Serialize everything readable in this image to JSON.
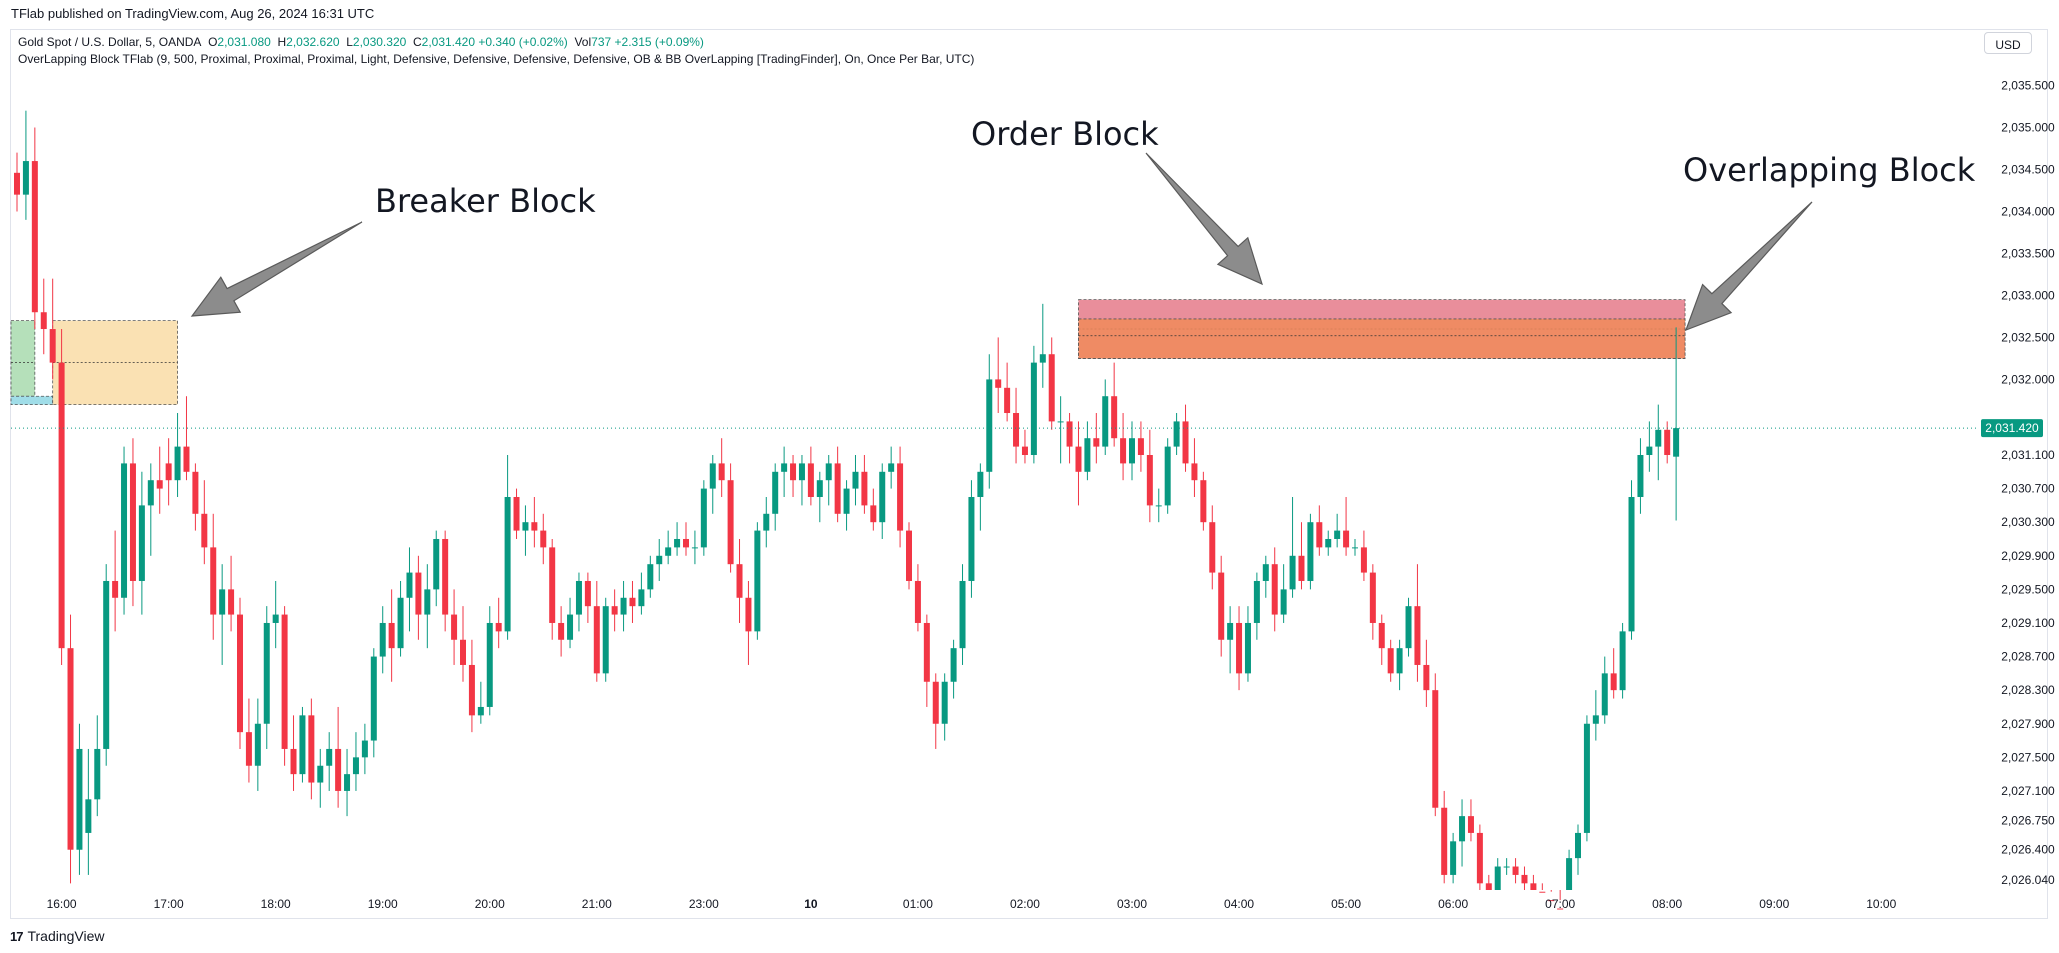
{
  "publisher": {
    "text": "TFlab published on TradingView.com, Aug 26, 2024 16:31 UTC"
  },
  "legend": {
    "symbol": "Gold Spot / U.S. Dollar, 5, OANDA",
    "open_label": "O",
    "open": "2,031.080",
    "high_label": "H",
    "high": "2,032.620",
    "low_label": "L",
    "low": "2,030.320",
    "close_label": "C",
    "close": "2,031.420",
    "change": "+0.340 (+0.02%)",
    "vol_label": "Vol",
    "vol": "737",
    "vol_change": "+2.315 (+0.09%)",
    "indicator": "OverLapping Block TFlab (9, 500, Proximal, Proximal, Proximal, Light, Defensive, Defensive, Defensive, Defensive, OB & BB OverLapping [TradingFinder], On, Once Per Bar, UTC)"
  },
  "currency": {
    "label": "USD"
  },
  "footer": {
    "brand": "TradingView",
    "logo": "17"
  },
  "colors": {
    "up": "#089981",
    "down": "#f23645",
    "order_block": "#e57a8a",
    "overlap": "#f08b5a",
    "breaker": "#f9dca6",
    "green_zone": "#a8dbae",
    "cyan_zone": "#8fd7e4",
    "arrow": "#8c8c8c",
    "price_tag": "#089981"
  },
  "annotations": {
    "breaker": "Breaker Block",
    "order": "Order Block",
    "overlap": "Overlapping Block"
  },
  "chart_data": {
    "type": "candlestick",
    "symbol": "XAUUSD",
    "timeframe": "5",
    "ylim": [
      2025.98,
      2035.72
    ],
    "last_price": 2031.42,
    "last_price_label": "2,031.420",
    "y_ticks": [
      {
        "v": 2035.5,
        "label": "2,035.500"
      },
      {
        "v": 2035.0,
        "label": "2,035.000"
      },
      {
        "v": 2034.5,
        "label": "2,034.500"
      },
      {
        "v": 2034.0,
        "label": "2,034.000"
      },
      {
        "v": 2033.5,
        "label": "2,033.500"
      },
      {
        "v": 2033.0,
        "label": "2,033.000"
      },
      {
        "v": 2032.5,
        "label": "2,032.500"
      },
      {
        "v": 2032.0,
        "label": "2,032.000"
      },
      {
        "v": 2031.5,
        "label": "2,031.500"
      },
      {
        "v": 2031.1,
        "label": "2,031.100"
      },
      {
        "v": 2030.7,
        "label": "2,030.700"
      },
      {
        "v": 2030.3,
        "label": "2,030.300"
      },
      {
        "v": 2029.9,
        "label": "2,029.900"
      },
      {
        "v": 2029.5,
        "label": "2,029.500"
      },
      {
        "v": 2029.1,
        "label": "2,029.100"
      },
      {
        "v": 2028.7,
        "label": "2,028.700"
      },
      {
        "v": 2028.3,
        "label": "2,028.300"
      },
      {
        "v": 2027.9,
        "label": "2,027.900"
      },
      {
        "v": 2027.5,
        "label": "2,027.500"
      },
      {
        "v": 2027.1,
        "label": "2,027.100"
      },
      {
        "v": 2026.75,
        "label": "2,026.750"
      },
      {
        "v": 2026.4,
        "label": "2,026.400"
      },
      {
        "v": 2026.04,
        "label": "2,026.040"
      }
    ],
    "x_ticks": [
      {
        "i": 5,
        "label": "16:00"
      },
      {
        "i": 17,
        "label": "17:00"
      },
      {
        "i": 29,
        "label": "18:00"
      },
      {
        "i": 41,
        "label": "19:00"
      },
      {
        "i": 53,
        "label": "20:00"
      },
      {
        "i": 65,
        "label": "21:00"
      },
      {
        "i": 77,
        "label": "23:00"
      },
      {
        "i": 89,
        "label": "10"
      },
      {
        "i": 101,
        "label": "01:00"
      },
      {
        "i": 113,
        "label": "02:00"
      },
      {
        "i": 125,
        "label": "03:00"
      },
      {
        "i": 137,
        "label": "04:00"
      },
      {
        "i": 149,
        "label": "05:00"
      },
      {
        "i": 161,
        "label": "06:00"
      },
      {
        "i": 173,
        "label": "07:00"
      },
      {
        "i": 185,
        "label": "08:00"
      },
      {
        "i": 197,
        "label": "09:00"
      },
      {
        "i": 209,
        "label": "10:00"
      }
    ],
    "zones": [
      {
        "name": "green-zone",
        "i0": -1,
        "i1": 2,
        "top": 2032.7,
        "bottom": 2031.8,
        "mid": 2032.2
      },
      {
        "name": "cyan-zone",
        "i0": -1,
        "i1": 4,
        "top": 2031.8,
        "bottom": 2031.7
      },
      {
        "name": "breaker-block-zone",
        "i0": 4,
        "i1": 18,
        "top": 2032.7,
        "bottom": 2031.7,
        "mid": 2032.2
      },
      {
        "name": "order-block-zone",
        "i0": 119,
        "i1": 187,
        "top": 2032.95,
        "bottom": 2032.25,
        "mid": 2032.6
      },
      {
        "name": "overlapping-block-zone",
        "i0": 119,
        "i1": 187,
        "top": 2032.72,
        "bottom": 2032.25,
        "mid": 2032.52
      }
    ],
    "candles": [
      [
        2034.46,
        2034.7,
        2034.0,
        2034.2
      ],
      [
        2034.2,
        2035.2,
        2033.9,
        2034.6
      ],
      [
        2034.6,
        2035.0,
        2032.6,
        2032.8
      ],
      [
        2032.8,
        2033.2,
        2032.3,
        2032.6
      ],
      [
        2032.6,
        2033.2,
        2032.0,
        2032.2
      ],
      [
        2032.2,
        2032.6,
        2028.6,
        2028.8
      ],
      [
        2028.8,
        2029.2,
        2026.0,
        2026.4
      ],
      [
        2026.4,
        2027.9,
        2026.1,
        2027.6
      ],
      [
        2026.6,
        2027.6,
        2026.1,
        2027.0
      ],
      [
        2027.0,
        2028.0,
        2026.8,
        2027.6
      ],
      [
        2027.6,
        2029.8,
        2027.4,
        2029.6
      ],
      [
        2029.6,
        2030.2,
        2029.0,
        2029.4
      ],
      [
        2029.4,
        2031.2,
        2029.2,
        2031.0
      ],
      [
        2031.0,
        2031.3,
        2029.3,
        2029.6
      ],
      [
        2029.6,
        2030.9,
        2029.2,
        2030.5
      ],
      [
        2030.5,
        2031.0,
        2029.9,
        2030.8
      ],
      [
        2030.8,
        2031.2,
        2030.4,
        2030.7
      ],
      [
        2031.0,
        2031.3,
        2030.5,
        2030.8
      ],
      [
        2030.8,
        2031.6,
        2030.6,
        2031.2
      ],
      [
        2031.2,
        2031.8,
        2030.8,
        2030.9
      ],
      [
        2030.9,
        2031.0,
        2030.2,
        2030.4
      ],
      [
        2030.4,
        2030.8,
        2029.8,
        2030.0
      ],
      [
        2030.0,
        2030.4,
        2028.9,
        2029.2
      ],
      [
        2029.2,
        2029.8,
        2028.6,
        2029.5
      ],
      [
        2029.5,
        2029.9,
        2029.0,
        2029.2
      ],
      [
        2029.2,
        2029.4,
        2027.6,
        2027.8
      ],
      [
        2027.8,
        2028.2,
        2027.2,
        2027.4
      ],
      [
        2027.4,
        2028.2,
        2027.1,
        2027.9
      ],
      [
        2027.9,
        2029.3,
        2027.6,
        2029.1
      ],
      [
        2029.1,
        2029.6,
        2028.8,
        2029.2
      ],
      [
        2029.2,
        2029.3,
        2027.4,
        2027.6
      ],
      [
        2027.6,
        2028.0,
        2027.1,
        2027.3
      ],
      [
        2027.3,
        2028.1,
        2027.2,
        2028.0
      ],
      [
        2028.0,
        2028.2,
        2027.0,
        2027.2
      ],
      [
        2027.2,
        2027.6,
        2026.9,
        2027.4
      ],
      [
        2027.4,
        2027.8,
        2027.1,
        2027.6
      ],
      [
        2027.6,
        2028.1,
        2026.9,
        2027.1
      ],
      [
        2027.1,
        2027.6,
        2026.8,
        2027.3
      ],
      [
        2027.3,
        2027.8,
        2027.1,
        2027.5
      ],
      [
        2027.5,
        2027.9,
        2027.3,
        2027.7
      ],
      [
        2027.7,
        2028.8,
        2027.5,
        2028.7
      ],
      [
        2028.7,
        2029.3,
        2028.5,
        2029.1
      ],
      [
        2029.1,
        2029.5,
        2028.4,
        2028.8
      ],
      [
        2028.8,
        2029.6,
        2028.7,
        2029.4
      ],
      [
        2029.4,
        2030.0,
        2029.0,
        2029.7
      ],
      [
        2029.7,
        2029.9,
        2028.9,
        2029.2
      ],
      [
        2029.2,
        2029.8,
        2028.8,
        2029.5
      ],
      [
        2029.5,
        2030.2,
        2029.3,
        2030.1
      ],
      [
        2030.1,
        2030.2,
        2029.0,
        2029.2
      ],
      [
        2029.2,
        2029.5,
        2028.6,
        2028.9
      ],
      [
        2028.9,
        2029.3,
        2028.4,
        2028.6
      ],
      [
        2028.6,
        2028.9,
        2027.8,
        2028.0
      ],
      [
        2028.0,
        2028.4,
        2027.9,
        2028.1
      ],
      [
        2028.1,
        2029.3,
        2028.0,
        2029.1
      ],
      [
        2029.1,
        2029.4,
        2028.8,
        2029.0
      ],
      [
        2029.0,
        2031.1,
        2028.9,
        2030.6
      ],
      [
        2030.6,
        2030.7,
        2030.1,
        2030.2
      ],
      [
        2030.2,
        2030.5,
        2029.9,
        2030.3
      ],
      [
        2030.3,
        2030.6,
        2030.0,
        2030.2
      ],
      [
        2030.2,
        2030.4,
        2029.8,
        2030.0
      ],
      [
        2030.0,
        2030.1,
        2028.9,
        2029.1
      ],
      [
        2029.1,
        2029.3,
        2028.7,
        2028.9
      ],
      [
        2028.9,
        2029.4,
        2028.8,
        2029.2
      ],
      [
        2029.2,
        2029.7,
        2029.0,
        2029.6
      ],
      [
        2029.6,
        2029.7,
        2029.1,
        2029.3
      ],
      [
        2029.3,
        2029.6,
        2028.4,
        2028.5
      ],
      [
        2028.5,
        2029.4,
        2028.4,
        2029.3
      ],
      [
        2029.3,
        2029.5,
        2029.0,
        2029.2
      ],
      [
        2029.2,
        2029.6,
        2029.0,
        2029.4
      ],
      [
        2029.4,
        2029.6,
        2029.1,
        2029.3
      ],
      [
        2029.3,
        2029.7,
        2029.2,
        2029.5
      ],
      [
        2029.5,
        2029.9,
        2029.4,
        2029.8
      ],
      [
        2029.8,
        2030.1,
        2029.6,
        2029.9
      ],
      [
        2029.9,
        2030.2,
        2029.8,
        2030.0
      ],
      [
        2030.0,
        2030.3,
        2029.9,
        2030.1
      ],
      [
        2030.1,
        2030.3,
        2029.9,
        2030.0
      ],
      [
        2030.0,
        2030.2,
        2029.8,
        2030.0
      ],
      [
        2030.0,
        2030.8,
        2029.9,
        2030.7
      ],
      [
        2030.7,
        2031.1,
        2030.4,
        2031.0
      ],
      [
        2031.0,
        2031.3,
        2030.6,
        2030.8
      ],
      [
        2030.8,
        2031.0,
        2029.7,
        2029.8
      ],
      [
        2029.8,
        2030.1,
        2029.1,
        2029.4
      ],
      [
        2029.4,
        2029.6,
        2028.6,
        2029.0
      ],
      [
        2029.0,
        2030.3,
        2028.9,
        2030.2
      ],
      [
        2030.2,
        2030.6,
        2030.0,
        2030.4
      ],
      [
        2030.4,
        2031.0,
        2030.2,
        2030.9
      ],
      [
        2030.9,
        2031.2,
        2030.6,
        2031.0
      ],
      [
        2031.0,
        2031.1,
        2030.6,
        2030.8
      ],
      [
        2030.8,
        2031.1,
        2030.5,
        2031.0
      ],
      [
        2031.0,
        2031.2,
        2030.5,
        2030.6
      ],
      [
        2030.6,
        2030.9,
        2030.3,
        2030.8
      ],
      [
        2030.8,
        2031.1,
        2030.5,
        2031.0
      ],
      [
        2031.0,
        2031.2,
        2030.3,
        2030.4
      ],
      [
        2030.4,
        2030.8,
        2030.2,
        2030.7
      ],
      [
        2030.7,
        2031.1,
        2030.5,
        2030.9
      ],
      [
        2030.9,
        2031.1,
        2030.4,
        2030.5
      ],
      [
        2030.5,
        2030.7,
        2030.2,
        2030.3
      ],
      [
        2030.3,
        2031.0,
        2030.1,
        2030.9
      ],
      [
        2030.9,
        2031.2,
        2030.7,
        2031.0
      ],
      [
        2031.0,
        2031.2,
        2030.0,
        2030.2
      ],
      [
        2030.2,
        2030.3,
        2029.5,
        2029.6
      ],
      [
        2029.6,
        2029.8,
        2029.0,
        2029.1
      ],
      [
        2029.1,
        2029.2,
        2028.1,
        2028.4
      ],
      [
        2028.4,
        2028.5,
        2027.6,
        2027.9
      ],
      [
        2027.9,
        2028.5,
        2027.7,
        2028.4
      ],
      [
        2028.4,
        2028.9,
        2028.2,
        2028.8
      ],
      [
        2028.8,
        2029.8,
        2028.6,
        2029.6
      ],
      [
        2029.6,
        2030.8,
        2029.4,
        2030.6
      ],
      [
        2030.6,
        2031.0,
        2030.2,
        2030.9
      ],
      [
        2030.9,
        2032.3,
        2030.7,
        2032.0
      ],
      [
        2032.0,
        2032.5,
        2031.6,
        2031.9
      ],
      [
        2031.9,
        2032.2,
        2031.5,
        2031.6
      ],
      [
        2031.6,
        2031.9,
        2031.0,
        2031.2
      ],
      [
        2031.2,
        2031.4,
        2031.0,
        2031.1
      ],
      [
        2031.1,
        2032.4,
        2031.0,
        2032.2
      ],
      [
        2032.2,
        2032.9,
        2031.9,
        2032.3
      ],
      [
        2032.3,
        2032.5,
        2031.4,
        2031.5
      ],
      [
        2031.5,
        2031.8,
        2031.0,
        2031.5
      ],
      [
        2031.5,
        2031.6,
        2031.0,
        2031.2
      ],
      [
        2031.2,
        2031.5,
        2030.5,
        2030.9
      ],
      [
        2030.9,
        2031.5,
        2030.8,
        2031.3
      ],
      [
        2031.3,
        2031.6,
        2031.0,
        2031.2
      ],
      [
        2031.2,
        2032.0,
        2031.1,
        2031.8
      ],
      [
        2031.8,
        2032.2,
        2031.2,
        2031.3
      ],
      [
        2031.3,
        2031.6,
        2030.8,
        2031.0
      ],
      [
        2031.0,
        2031.5,
        2030.8,
        2031.3
      ],
      [
        2031.3,
        2031.5,
        2030.9,
        2031.1
      ],
      [
        2031.1,
        2031.4,
        2030.3,
        2030.5
      ],
      [
        2030.5,
        2030.7,
        2030.3,
        2030.5
      ],
      [
        2030.5,
        2031.3,
        2030.4,
        2031.2
      ],
      [
        2031.2,
        2031.6,
        2031.1,
        2031.5
      ],
      [
        2031.5,
        2031.7,
        2030.9,
        2031.0
      ],
      [
        2031.0,
        2031.3,
        2030.6,
        2030.8
      ],
      [
        2030.8,
        2030.9,
        2030.2,
        2030.3
      ],
      [
        2030.3,
        2030.5,
        2029.5,
        2029.7
      ],
      [
        2029.7,
        2029.9,
        2028.7,
        2028.9
      ],
      [
        2028.9,
        2029.3,
        2028.5,
        2029.1
      ],
      [
        2029.1,
        2029.3,
        2028.3,
        2028.5
      ],
      [
        2028.5,
        2029.3,
        2028.4,
        2029.1
      ],
      [
        2029.1,
        2029.7,
        2028.9,
        2029.6
      ],
      [
        2029.6,
        2029.9,
        2029.4,
        2029.8
      ],
      [
        2029.8,
        2030.0,
        2029.0,
        2029.2
      ],
      [
        2029.2,
        2029.8,
        2029.1,
        2029.5
      ],
      [
        2029.5,
        2030.6,
        2029.4,
        2029.9
      ],
      [
        2029.9,
        2030.3,
        2029.5,
        2029.6
      ],
      [
        2029.6,
        2030.4,
        2029.5,
        2030.3
      ],
      [
        2030.3,
        2030.5,
        2029.9,
        2030.0
      ],
      [
        2030.0,
        2030.2,
        2029.9,
        2030.1
      ],
      [
        2030.1,
        2030.4,
        2030.0,
        2030.2
      ],
      [
        2030.2,
        2030.6,
        2029.9,
        2030.0
      ],
      [
        2030.0,
        2030.1,
        2029.9,
        2030.0
      ],
      [
        2030.0,
        2030.2,
        2029.6,
        2029.7
      ],
      [
        2029.7,
        2029.8,
        2028.9,
        2029.1
      ],
      [
        2029.1,
        2029.2,
        2028.6,
        2028.8
      ],
      [
        2028.8,
        2028.9,
        2028.4,
        2028.5
      ],
      [
        2028.5,
        2028.9,
        2028.3,
        2028.8
      ],
      [
        2028.8,
        2029.4,
        2028.7,
        2029.3
      ],
      [
        2029.3,
        2029.8,
        2028.4,
        2028.6
      ],
      [
        2028.6,
        2028.9,
        2028.1,
        2028.3
      ],
      [
        2028.3,
        2028.5,
        2026.8,
        2026.9
      ],
      [
        2026.9,
        2027.1,
        2026.0,
        2026.1
      ],
      [
        2026.1,
        2026.6,
        2026.0,
        2026.5
      ],
      [
        2026.5,
        2027.0,
        2026.2,
        2026.8
      ],
      [
        2026.8,
        2027.0,
        2026.5,
        2026.6
      ],
      [
        2026.6,
        2026.7,
        2025.9,
        2026.0
      ],
      [
        2026.0,
        2026.1,
        2025.8,
        2025.9
      ],
      [
        2025.9,
        2026.3,
        2025.8,
        2026.2
      ],
      [
        2026.2,
        2026.3,
        2026.1,
        2026.2
      ],
      [
        2026.2,
        2026.3,
        2026.0,
        2026.1
      ],
      [
        2026.1,
        2026.2,
        2025.9,
        2026.0
      ],
      [
        2026.0,
        2026.1,
        2025.8,
        2025.9
      ],
      [
        2025.9,
        2026.0,
        2025.7,
        2025.8
      ],
      [
        2025.8,
        2025.9,
        2025.6,
        2025.7
      ],
      [
        2025.7,
        2025.8,
        2025.5,
        2025.6
      ],
      [
        2025.6,
        2026.4,
        2025.5,
        2026.3
      ],
      [
        2026.3,
        2026.7,
        2026.1,
        2026.6
      ],
      [
        2026.6,
        2028.0,
        2026.5,
        2027.9
      ],
      [
        2027.9,
        2028.3,
        2027.7,
        2028.0
      ],
      [
        2028.0,
        2028.7,
        2027.9,
        2028.5
      ],
      [
        2028.5,
        2028.8,
        2028.2,
        2028.3
      ],
      [
        2028.3,
        2029.1,
        2028.2,
        2029.0
      ],
      [
        2029.0,
        2030.8,
        2028.9,
        2030.6
      ],
      [
        2030.6,
        2031.3,
        2030.4,
        2031.1
      ],
      [
        2031.1,
        2031.5,
        2030.9,
        2031.2
      ],
      [
        2031.2,
        2031.7,
        2030.8,
        2031.4
      ],
      [
        2031.4,
        2031.5,
        2031.0,
        2031.1
      ],
      [
        2031.08,
        2032.62,
        2030.32,
        2031.42
      ]
    ]
  }
}
